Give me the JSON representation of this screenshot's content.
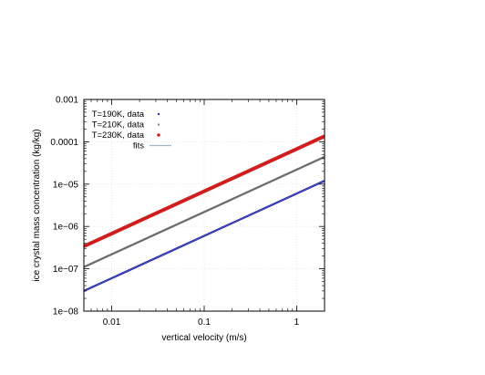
{
  "chart_data": {
    "type": "line",
    "title": "",
    "xlabel": "vertical velocity (m/s)",
    "ylabel": "ice crystal mass concentration (kg/kg)",
    "xscale": "log",
    "yscale": "log",
    "xlim": [
      0.005,
      2
    ],
    "ylim": [
      1e-08,
      0.001
    ],
    "grid": true,
    "legend_position": "top-left",
    "x_ticks": [
      {
        "value": 0.01,
        "label": "0.01"
      },
      {
        "value": 0.1,
        "label": "0.1"
      },
      {
        "value": 1,
        "label": "1"
      }
    ],
    "y_ticks": [
      {
        "value": 1e-08,
        "label": "1e−08"
      },
      {
        "value": 1e-07,
        "label": "1e−07"
      },
      {
        "value": 1e-06,
        "label": "1e−06"
      },
      {
        "value": 1e-05,
        "label": "1e−05"
      },
      {
        "value": 0.0001,
        "label": "0.0001"
      },
      {
        "value": 0.001,
        "label": "0.001"
      }
    ],
    "series": [
      {
        "name": "T=190K, data",
        "color": "#1a1aaa",
        "marker": "dot",
        "x": [
          0.005,
          2
        ],
        "y": [
          3e-08,
          1.2e-05
        ]
      },
      {
        "name": "T=210K, data",
        "color": "#7a7a7a",
        "marker": "dot",
        "x": [
          0.005,
          2
        ],
        "y": [
          1.1e-07,
          4.4e-05
        ]
      },
      {
        "name": "T=230K, data",
        "color": "#d42020",
        "marker": "dot",
        "x": [
          0.005,
          2
        ],
        "y": [
          3.4e-07,
          0.000135
        ]
      }
    ],
    "fits": [
      {
        "name": "fits",
        "color": "#9ab8c8",
        "x": [
          0.005,
          2
        ],
        "y": [
          3e-08,
          1.2e-05
        ]
      },
      {
        "name": "",
        "color": "#444444",
        "x": [
          0.005,
          2
        ],
        "y": [
          1.1e-07,
          4.4e-05
        ]
      },
      {
        "name": "",
        "color": "#b01818",
        "x": [
          0.005,
          2
        ],
        "y": [
          3.4e-07,
          0.000135
        ]
      }
    ]
  }
}
